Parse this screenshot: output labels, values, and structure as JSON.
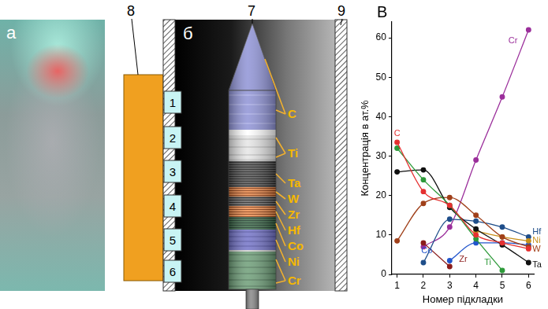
{
  "panel_a": {
    "label": "а"
  },
  "panel_b": {
    "label": "б",
    "callouts": {
      "heater": "8",
      "wall": "9",
      "cathode": "7"
    },
    "substrates": [
      "1",
      "2",
      "3",
      "4",
      "5",
      "6"
    ],
    "cathode_labels": [
      "C",
      "Ti",
      "Ta",
      "W",
      "Zr",
      "Hf",
      "Co",
      "Ni",
      "Cr"
    ]
  },
  "chart_data": {
    "type": "line",
    "title": "В",
    "x_label": "Номер підкладки",
    "y_label": "Концентрація в ат.%",
    "x": [
      1,
      2,
      3,
      4,
      5,
      6
    ],
    "xlim": [
      0.8,
      6.2
    ],
    "xticks": [
      1,
      2,
      3,
      4,
      5,
      6
    ],
    "ylim": [
      0,
      64
    ],
    "yticks": [
      0,
      10,
      20,
      30,
      40,
      50,
      60
    ],
    "grid": false,
    "marker": "circle",
    "series": [
      {
        "name": "C",
        "color": "#e53030",
        "values": [
          33.5,
          21,
          17.5,
          10,
          8,
          6.5
        ]
      },
      {
        "name": "Ti",
        "color": "#2e9a3a",
        "values": [
          32,
          24,
          17.5,
          9,
          1,
          null
        ]
      },
      {
        "name": "Ta",
        "color": "#111111",
        "values": [
          26,
          26.5,
          17,
          11.5,
          7.5,
          3
        ]
      },
      {
        "name": "W",
        "color": "#a0401a",
        "values": [
          8.5,
          18,
          19.5,
          15,
          9.5,
          7
        ]
      },
      {
        "name": "Ni",
        "color": "#c8901a",
        "values": [
          null,
          null,
          null,
          11,
          9.5,
          8.5
        ]
      },
      {
        "name": "Hf",
        "color": "#1f4e8a",
        "values": [
          null,
          3,
          14,
          13.5,
          12,
          9.5
        ]
      },
      {
        "name": "Co",
        "color": "#2255cc",
        "values": [
          null,
          null,
          3.5,
          8,
          8,
          7.5
        ]
      },
      {
        "name": "Zr",
        "color": "#8b1c1c",
        "values": [
          null,
          8,
          2,
          null,
          null,
          null
        ]
      },
      {
        "name": "Cr",
        "color": "#9b2f9b",
        "values": [
          null,
          7,
          12,
          29,
          45,
          62
        ]
      }
    ]
  }
}
